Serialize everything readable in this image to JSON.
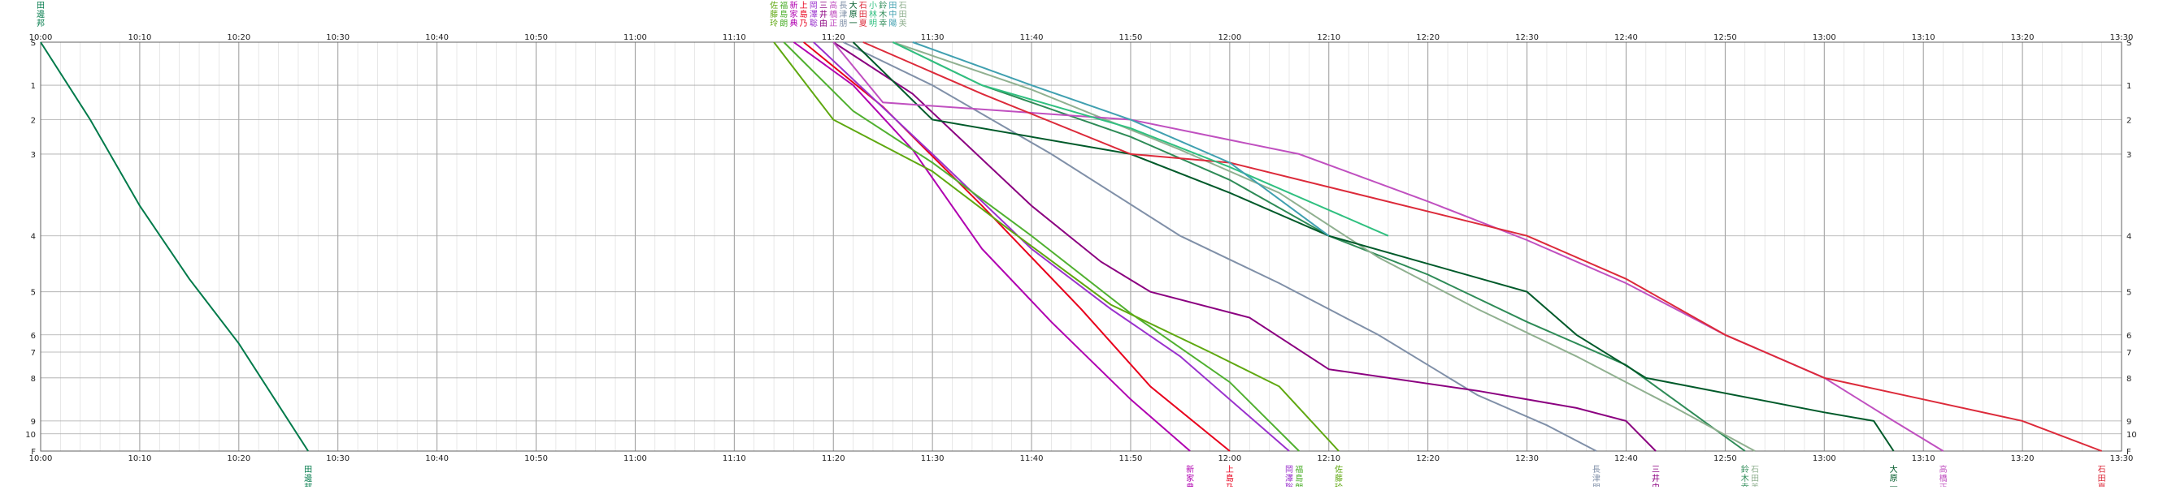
{
  "chart_data": {
    "type": "line",
    "x_unit": "time of day",
    "xlim": [
      "10:00",
      "13:30"
    ],
    "time_ticks": [
      "10:00",
      "10:10",
      "10:20",
      "10:30",
      "10:40",
      "10:50",
      "11:00",
      "11:10",
      "11:20",
      "11:30",
      "11:40",
      "11:50",
      "12:00",
      "12:10",
      "12:20",
      "12:30",
      "12:40",
      "12:50",
      "13:00",
      "13:10",
      "13:20",
      "13:30"
    ],
    "stations": [
      {
        "label": "S",
        "y": 0
      },
      {
        "label": "1",
        "y": 1.0
      },
      {
        "label": "2",
        "y": 1.8
      },
      {
        "label": "3",
        "y": 2.6
      },
      {
        "label": "4",
        "y": 4.5
      },
      {
        "label": "5",
        "y": 5.8
      },
      {
        "label": "6",
        "y": 6.8
      },
      {
        "label": "7",
        "y": 7.2
      },
      {
        "label": "8",
        "y": 7.8
      },
      {
        "label": "9",
        "y": 8.8
      },
      {
        "label": "10",
        "y": 9.1
      },
      {
        "label": "F",
        "y": 9.5
      }
    ],
    "ylim": [
      0,
      9.5
    ],
    "grid": true,
    "series": [
      {
        "name": "田邊邦",
        "color": "#007a4a",
        "start": "10:00",
        "finish": "10:27",
        "points": [
          [
            "10:00",
            0
          ],
          [
            "10:05",
            1.8
          ],
          [
            "10:10",
            3.8
          ],
          [
            "10:15",
            5.5
          ],
          [
            "10:20",
            7.0
          ],
          [
            "10:27",
            9.5
          ]
        ]
      },
      {
        "name": "新家典",
        "color": "#b000b0",
        "start": "11:16",
        "finish": "11:56",
        "points": [
          [
            "11:16",
            0
          ],
          [
            "11:22",
            1.0
          ],
          [
            "11:28",
            2.5
          ],
          [
            "11:35",
            4.8
          ],
          [
            "11:42",
            6.5
          ],
          [
            "11:50",
            8.3
          ],
          [
            "11:56",
            9.5
          ]
        ]
      },
      {
        "name": "上島乃",
        "color": "#e8001c",
        "start": "11:17",
        "finish": "12:00",
        "points": [
          [
            "11:17",
            0
          ],
          [
            "11:25",
            1.5
          ],
          [
            "11:35",
            3.8
          ],
          [
            "11:45",
            6.2
          ],
          [
            "11:52",
            8.0
          ],
          [
            "12:00",
            9.5
          ]
        ]
      },
      {
        "name": "岡澤聡",
        "color": "#9a32cd",
        "start": "11:18",
        "finish": "12:06",
        "points": [
          [
            "11:18",
            0
          ],
          [
            "11:30",
            2.6
          ],
          [
            "11:40",
            4.8
          ],
          [
            "11:48",
            6.2
          ],
          [
            "11:55",
            7.3
          ],
          [
            "12:06",
            9.5
          ]
        ]
      },
      {
        "name": "福島朗",
        "color": "#50b030",
        "start": "11:15",
        "finish": "12:07",
        "points": [
          [
            "11:15",
            0
          ],
          [
            "11:22",
            1.6
          ],
          [
            "11:30",
            2.8
          ],
          [
            "11:40",
            4.5
          ],
          [
            "11:50",
            6.3
          ],
          [
            "12:00",
            7.9
          ],
          [
            "12:07",
            9.5
          ]
        ]
      },
      {
        "name": "佐藤玲",
        "color": "#5fa810",
        "start": "11:14",
        "finish": "12:11",
        "points": [
          [
            "11:14",
            0
          ],
          [
            "11:20",
            1.8
          ],
          [
            "11:30",
            3.0
          ],
          [
            "11:38",
            4.4
          ],
          [
            "11:48",
            6.1
          ],
          [
            "11:58",
            7.2
          ],
          [
            "12:05",
            8.0
          ],
          [
            "12:11",
            9.5
          ]
        ]
      },
      {
        "name": "長津朋",
        "color": "#8090a8",
        "start": "11:21",
        "finish": "12:37",
        "points": [
          [
            "11:21",
            0
          ],
          [
            "11:30",
            1.0
          ],
          [
            "11:42",
            2.6
          ],
          [
            "11:55",
            4.5
          ],
          [
            "12:05",
            5.6
          ],
          [
            "12:15",
            6.8
          ],
          [
            "12:25",
            8.2
          ],
          [
            "12:32",
            8.9
          ],
          [
            "12:37",
            9.5
          ]
        ]
      },
      {
        "name": "三井由",
        "color": "#8b0080",
        "start": "11:20",
        "finish": "12:43",
        "points": [
          [
            "11:20",
            0
          ],
          [
            "11:28",
            1.2
          ],
          [
            "11:40",
            3.8
          ],
          [
            "11:47",
            5.1
          ],
          [
            "11:52",
            5.8
          ],
          [
            "12:02",
            6.4
          ],
          [
            "12:10",
            7.6
          ],
          [
            "12:25",
            8.1
          ],
          [
            "12:35",
            8.5
          ],
          [
            "12:40",
            8.8
          ],
          [
            "12:43",
            9.5
          ]
        ]
      },
      {
        "name": "鈴木幸",
        "color": "#2e8b57",
        "start": "11:26",
        "finish": "12:52",
        "points": [
          [
            "11:26",
            0
          ],
          [
            "11:35",
            1.0
          ],
          [
            "11:50",
            2.2
          ],
          [
            "12:00",
            3.2
          ],
          [
            "12:10",
            4.5
          ],
          [
            "12:20",
            5.4
          ],
          [
            "12:30",
            6.5
          ],
          [
            "12:40",
            7.5
          ],
          [
            "12:52",
            9.5
          ]
        ]
      },
      {
        "name": "石田美",
        "color": "#90b090",
        "start": "11:26",
        "finish": "12:53",
        "points": [
          [
            "11:26",
            0
          ],
          [
            "11:40",
            1.1
          ],
          [
            "11:55",
            2.5
          ],
          [
            "12:05",
            3.5
          ],
          [
            "12:15",
            5.0
          ],
          [
            "12:25",
            6.2
          ],
          [
            "12:35",
            7.3
          ],
          [
            "12:45",
            8.5
          ],
          [
            "12:53",
            9.5
          ]
        ]
      },
      {
        "name": "大原一",
        "color": "#005a2a",
        "start": "11:22",
        "finish": "13:07",
        "points": [
          [
            "11:22",
            0
          ],
          [
            "11:30",
            1.8
          ],
          [
            "11:50",
            2.6
          ],
          [
            "12:00",
            3.5
          ],
          [
            "12:10",
            4.5
          ],
          [
            "12:30",
            5.8
          ],
          [
            "12:35",
            6.8
          ],
          [
            "12:42",
            7.8
          ],
          [
            "13:00",
            8.6
          ],
          [
            "13:05",
            8.8
          ],
          [
            "13:07",
            9.5
          ]
        ]
      },
      {
        "name": "高橋正",
        "color": "#c050c0",
        "start": "11:20",
        "finish": "13:12",
        "points": [
          [
            "11:20",
            0
          ],
          [
            "11:25",
            1.4
          ],
          [
            "11:50",
            1.8
          ],
          [
            "12:07",
            2.6
          ],
          [
            "12:20",
            3.7
          ],
          [
            "12:30",
            4.6
          ],
          [
            "12:40",
            5.6
          ],
          [
            "12:50",
            6.8
          ],
          [
            "13:00",
            7.8
          ],
          [
            "13:07",
            8.8
          ],
          [
            "13:12",
            9.5
          ]
        ]
      },
      {
        "name": "石田夏",
        "color": "#dc2a3a",
        "start": "11:23",
        "finish": "13:28",
        "points": [
          [
            "11:23",
            0
          ],
          [
            "11:35",
            1.2
          ],
          [
            "11:50",
            2.6
          ],
          [
            "12:00",
            2.8
          ],
          [
            "12:30",
            4.5
          ],
          [
            "12:40",
            5.5
          ],
          [
            "12:50",
            6.8
          ],
          [
            "13:00",
            7.8
          ],
          [
            "13:10",
            8.3
          ],
          [
            "13:20",
            8.8
          ],
          [
            "13:28",
            9.5
          ]
        ]
      },
      {
        "name": "小林明",
        "color": "#30c080",
        "start": "11:26",
        "finish": "12:16",
        "points": [
          [
            "11:26",
            0
          ],
          [
            "11:35",
            1.0
          ],
          [
            "11:50",
            2.0
          ],
          [
            "12:00",
            2.9
          ],
          [
            "12:16",
            4.5
          ]
        ]
      },
      {
        "name": "田中陽",
        "color": "#40a0b0",
        "start": "11:28",
        "finish": "12:10",
        "points": [
          [
            "11:28",
            0
          ],
          [
            "11:40",
            1.0
          ],
          [
            "11:50",
            1.8
          ],
          [
            "12:00",
            2.8
          ],
          [
            "12:10",
            4.5
          ]
        ]
      }
    ],
    "top_labels": [
      {
        "label": "田邊邦",
        "time": "10:00",
        "color": "#007a4a"
      },
      {
        "label": "佐藤玲",
        "time": "11:14",
        "color": "#5fa810"
      },
      {
        "label": "福島朗",
        "time": "11:15",
        "color": "#50b030"
      },
      {
        "label": "新家典",
        "time": "11:16",
        "color": "#b000b0"
      },
      {
        "label": "上島乃",
        "time": "11:17",
        "color": "#e8001c"
      },
      {
        "label": "岡澤聡",
        "time": "11:18",
        "color": "#9a32cd"
      },
      {
        "label": "三井由",
        "time": "11:19",
        "color": "#8b0080"
      },
      {
        "label": "高橋正",
        "time": "11:20",
        "color": "#c050c0"
      },
      {
        "label": "長津朋",
        "time": "11:21",
        "color": "#8090a8"
      },
      {
        "label": "大原一",
        "time": "11:22",
        "color": "#005a2a"
      },
      {
        "label": "石田夏",
        "time": "11:23",
        "color": "#dc2a3a"
      },
      {
        "label": "小林明",
        "time": "11:24",
        "color": "#30c080"
      },
      {
        "label": "鈴木幸",
        "time": "11:25",
        "color": "#2e8b57"
      },
      {
        "label": "田中陽",
        "time": "11:26",
        "color": "#40a0b0"
      },
      {
        "label": "石田美",
        "time": "11:27",
        "color": "#90b090"
      }
    ],
    "bottom_labels": [
      {
        "label": "田邊邦",
        "time": "10:27",
        "color": "#007a4a"
      },
      {
        "label": "新家典",
        "time": "11:56",
        "color": "#b000b0"
      },
      {
        "label": "上島乃",
        "time": "12:00",
        "color": "#e8001c"
      },
      {
        "label": "岡澤聡",
        "time": "12:06",
        "color": "#9a32cd"
      },
      {
        "label": "福島朗",
        "time": "12:07",
        "color": "#50b030"
      },
      {
        "label": "佐藤玲",
        "time": "12:11",
        "color": "#5fa810"
      },
      {
        "label": "長津朋",
        "time": "12:37",
        "color": "#8090a8"
      },
      {
        "label": "三井由",
        "time": "12:43",
        "color": "#8b0080"
      },
      {
        "label": "鈴木幸",
        "time": "12:52",
        "color": "#2e8b57"
      },
      {
        "label": "石田美",
        "time": "12:53",
        "color": "#90b090"
      },
      {
        "label": "大原一",
        "time": "13:07",
        "color": "#005a2a"
      },
      {
        "label": "高橋正",
        "time": "13:12",
        "color": "#c050c0"
      },
      {
        "label": "石田夏",
        "time": "13:28",
        "color": "#dc2a3a"
      }
    ]
  }
}
